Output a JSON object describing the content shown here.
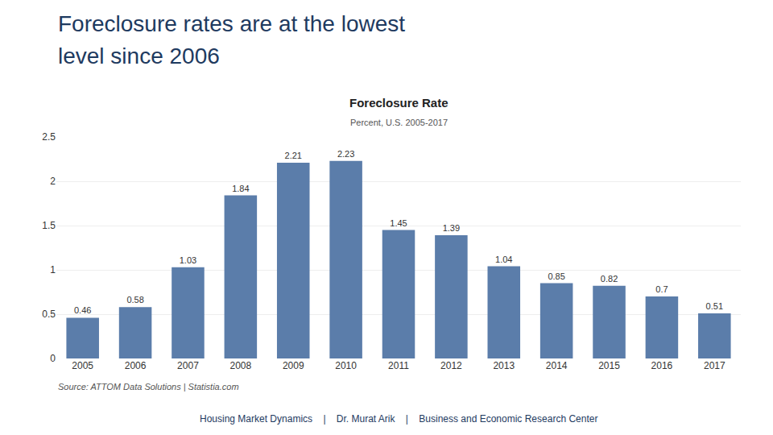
{
  "chart_data": {
    "type": "bar",
    "title": "Foreclosure Rate",
    "subtitle": "Percent, U.S. 2005-2017",
    "annotations": [
      "Foreclosure rates are at the lowest",
      "level since 2006",
      "Source: ATTOM Data Solutions | Statistia.com",
      "Housing Market Dynamics    |    Dr. Murat Arik    |    Business and Economic Research Center"
    ],
    "categories": [
      "2005",
      "2006",
      "2007",
      "2008",
      "2009",
      "2010",
      "2011",
      "2012",
      "2013",
      "2014",
      "2015",
      "2016",
      "2017"
    ],
    "values": [
      0.46,
      0.58,
      1.03,
      1.84,
      2.21,
      2.23,
      1.45,
      1.39,
      1.04,
      0.85,
      0.82,
      0.7,
      0.51
    ],
    "color": "#5b7daa",
    "ylim": [
      0,
      2.5
    ],
    "yticks": [
      0,
      0.5,
      1,
      1.5,
      2,
      2.5
    ],
    "grid": true,
    "data_labels": true
  }
}
